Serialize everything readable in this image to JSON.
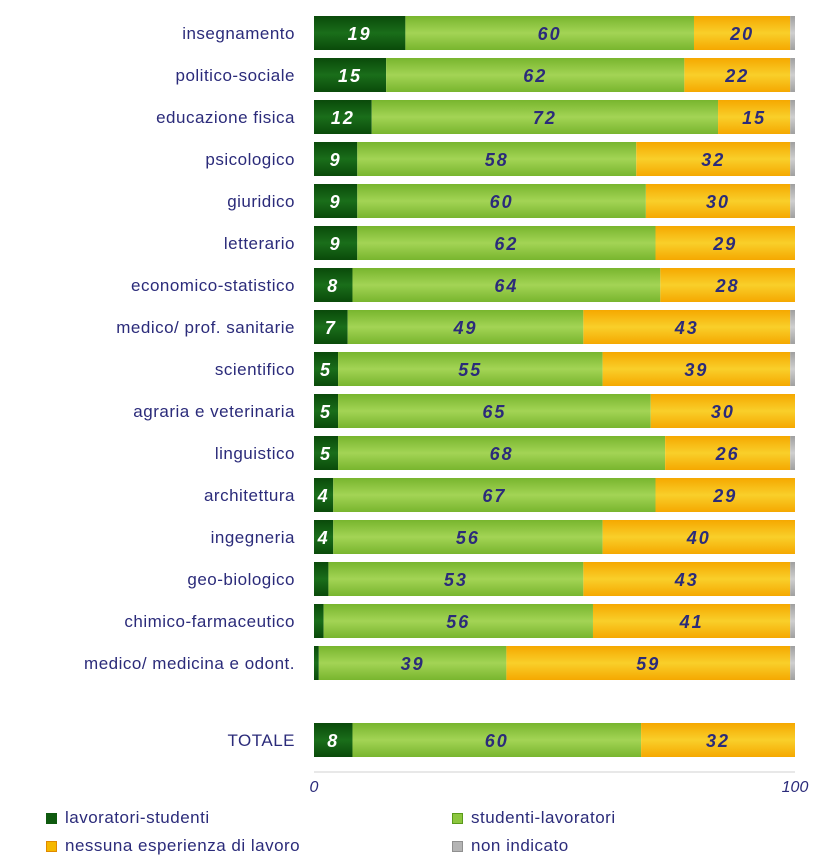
{
  "chart_data": {
    "type": "bar",
    "orientation": "horizontal",
    "stacked": true,
    "categories": [
      "insegnamento",
      "politico-sociale",
      "educazione fisica",
      "psicologico",
      "giuridico",
      "letterario",
      "economico-statistico",
      "medico/ prof. sanitarie",
      "scientifico",
      "agraria e veterinaria",
      "linguistico",
      "architettura",
      "ingegneria",
      "geo-biologico",
      "chimico-farmaceutico",
      "medico/ medicina e odont.",
      "TOTALE"
    ],
    "series": [
      {
        "name": "lavoratori-studenti",
        "color": "#0f5a0f",
        "values": [
          19,
          15,
          12,
          9,
          9,
          9,
          8,
          7,
          5,
          5,
          5,
          4,
          4,
          3,
          2,
          1,
          8
        ],
        "labels": [
          "19",
          "15",
          "12",
          "9",
          "9",
          "9",
          "8",
          "7",
          "5",
          "5",
          "5",
          "4",
          "4",
          "",
          "",
          "",
          "8"
        ]
      },
      {
        "name": "studenti-lavoratori",
        "color": "#8cc63e",
        "values": [
          60,
          62,
          72,
          58,
          60,
          62,
          64,
          49,
          55,
          65,
          68,
          67,
          56,
          53,
          56,
          39,
          60
        ],
        "labels": [
          "60",
          "62",
          "72",
          "58",
          "60",
          "62",
          "64",
          "49",
          "55",
          "65",
          "68",
          "67",
          "56",
          "53",
          "56",
          "39",
          "60"
        ]
      },
      {
        "name": "nessuna esperienza di lavoro",
        "color": "#f5b800",
        "values": [
          20,
          22,
          15,
          32,
          30,
          29,
          28,
          43,
          39,
          30,
          26,
          29,
          40,
          43,
          41,
          59,
          32
        ],
        "labels": [
          "20",
          "22",
          "15",
          "32",
          "30",
          "29",
          "28",
          "43",
          "39",
          "30",
          "26",
          "29",
          "40",
          "43",
          "41",
          "59",
          "32"
        ]
      },
      {
        "name": "non indicato",
        "color": "#b4b4b4",
        "values": [
          1,
          1,
          1,
          1,
          1,
          0,
          0,
          1,
          1,
          0,
          1,
          0,
          0,
          1,
          1,
          1,
          0
        ],
        "labels": [
          "",
          "",
          "",
          "",
          "",
          "",
          "",
          "",
          "",
          "",
          "",
          "",
          "",
          "",
          "",
          "",
          ""
        ]
      }
    ],
    "xlim": [
      0,
      100
    ],
    "x_ticks": [
      "0",
      "100"
    ],
    "legend_position": "bottom",
    "grid": false
  }
}
